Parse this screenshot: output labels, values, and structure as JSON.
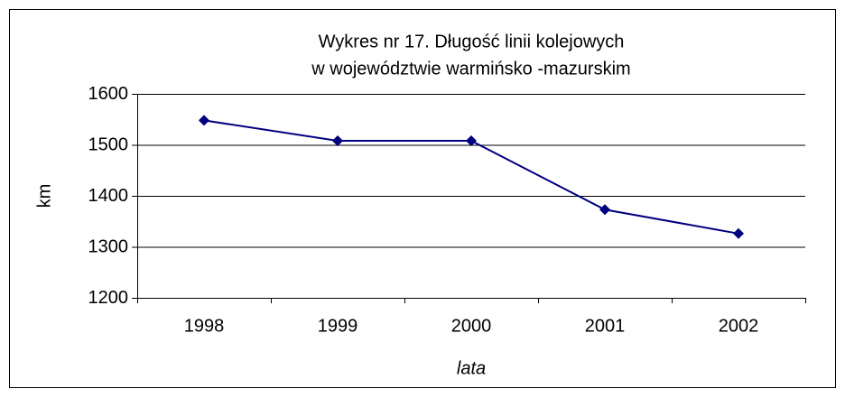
{
  "chart_data": {
    "type": "line",
    "title": [
      "Wykres nr 17. Długość linii kolejowych",
      "w województwie warmińsko -mazurskim"
    ],
    "x_label": "lata",
    "y_label": "km",
    "categories": [
      "1998",
      "1999",
      "2000",
      "2001",
      "2002"
    ],
    "series": [
      {
        "name": "km",
        "color": "#000080",
        "values": [
          1548,
          1508,
          1508,
          1373,
          1326
        ]
      }
    ],
    "ylim": [
      1200,
      1600
    ],
    "yticks": [
      1200,
      1300,
      1400,
      1500,
      1600
    ],
    "grid": true
  }
}
